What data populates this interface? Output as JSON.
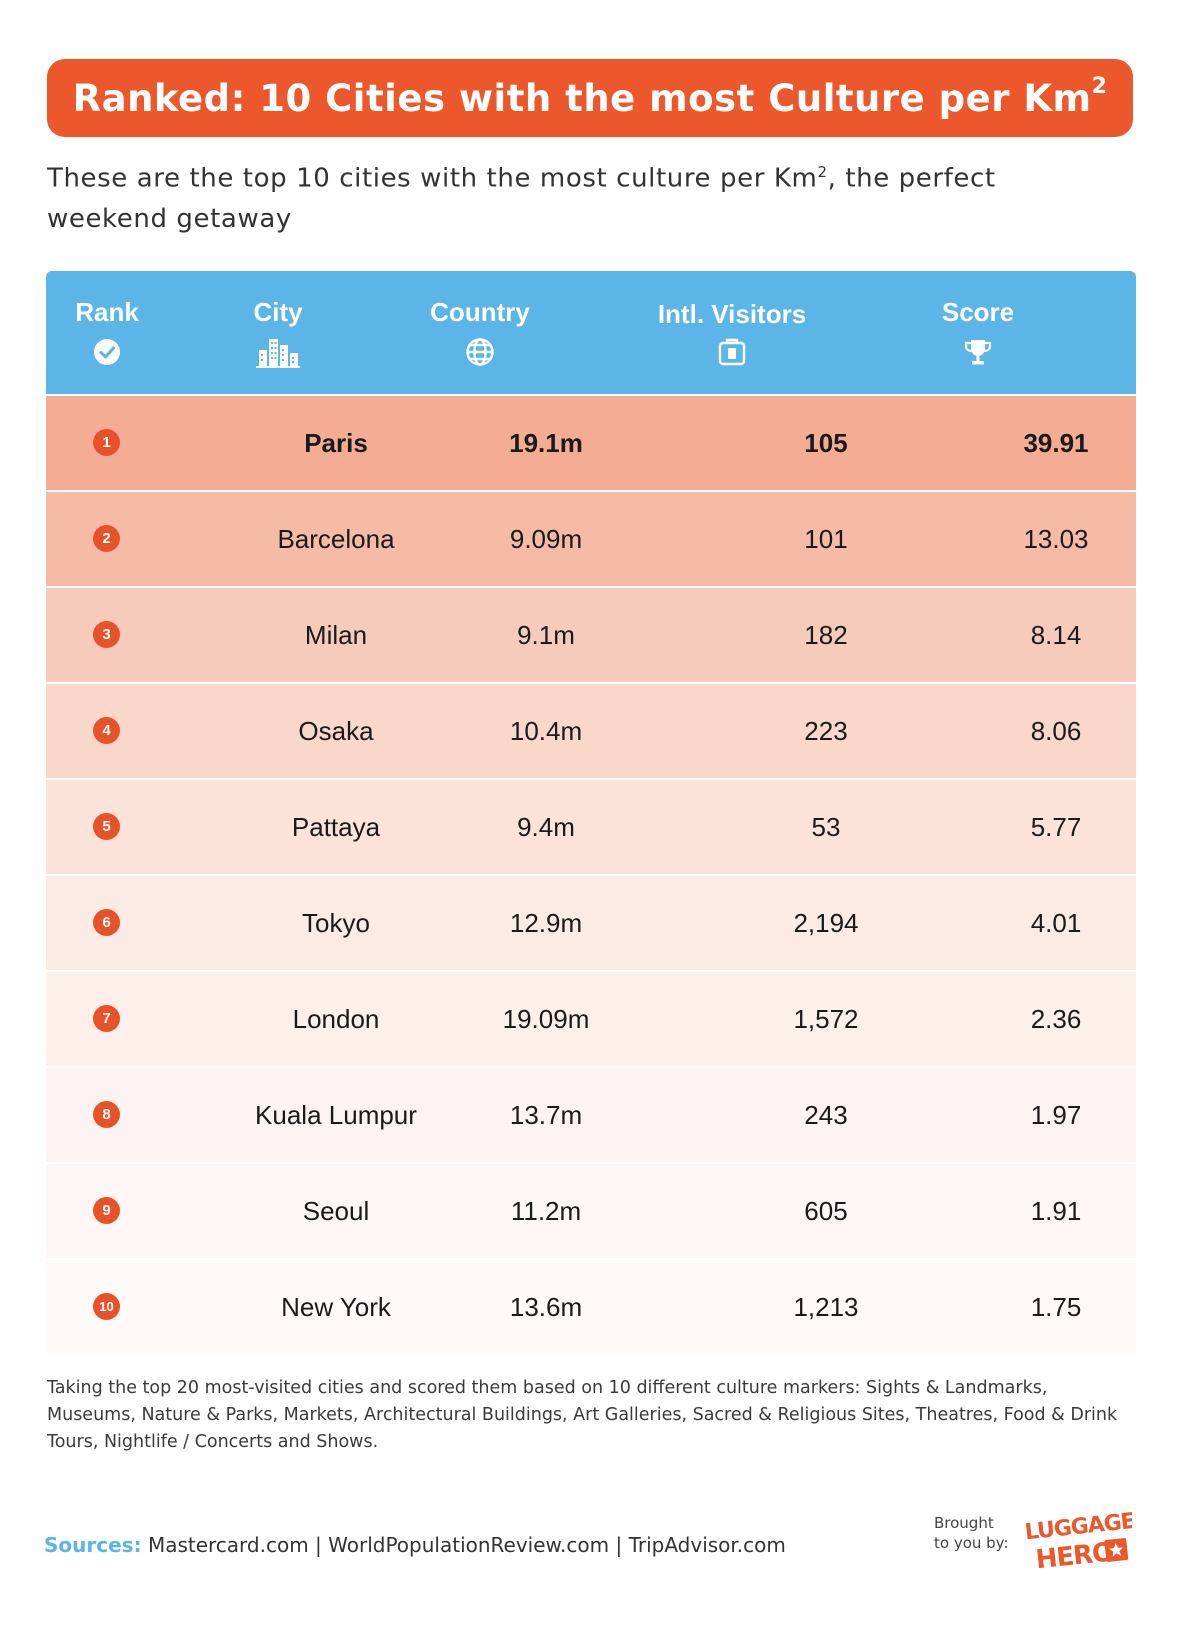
{
  "header": {
    "title": "Ranked: 10 Cities with the most Culture per Km",
    "title_sup": "2",
    "intro_before": "These are the top 10 cities with the most culture per Km",
    "intro_sup": "2",
    "intro_after": ", the perfect weekend getaway"
  },
  "table": {
    "header_color": "#5bb5e6",
    "columns": [
      {
        "label": "Rank",
        "icon": "check-circle-icon"
      },
      {
        "label": "City",
        "icon": "buildings-icon"
      },
      {
        "label": "Country",
        "icon": "globe-icon"
      },
      {
        "label": "Intl. Visitors",
        "icon": "luggage-icon"
      },
      {
        "label": "Score",
        "icon": "trophy-icon"
      }
    ],
    "rows": [
      {
        "rank": "1",
        "city": "Paris",
        "country": "19.1m",
        "visitors": "105",
        "score": "39.91",
        "bg": "#f4ac94"
      },
      {
        "rank": "2",
        "city": "Barcelona",
        "country": "9.09m",
        "visitors": "101",
        "score": "13.03",
        "bg": "#f5bba6"
      },
      {
        "rank": "3",
        "city": "Milan",
        "country": "9.1m",
        "visitors": "182",
        "score": "8.14",
        "bg": "#f7cbbb"
      },
      {
        "rank": "4",
        "city": "Osaka",
        "country": "10.4m",
        "visitors": "223",
        "score": "8.06",
        "bg": "#f9d7ca"
      },
      {
        "rank": "5",
        "city": "Pattaya",
        "country": "9.4m",
        "visitors": "53",
        "score": "5.77",
        "bg": "#fbe3da"
      },
      {
        "rank": "6",
        "city": "Tokyo",
        "country": "12.9m",
        "visitors": "2,194",
        "score": "4.01",
        "bg": "#fcebe5"
      },
      {
        "rank": "7",
        "city": "London",
        "country": "19.09m",
        "visitors": "1,572",
        "score": "2.36",
        "bg": "#fdf0eb"
      },
      {
        "rank": "8",
        "city": "Kuala Lumpur",
        "country": "13.7m",
        "visitors": "243",
        "score": "1.97",
        "bg": "#fdf4f1"
      },
      {
        "rank": "9",
        "city": "Seoul",
        "country": "11.2m",
        "visitors": "605",
        "score": "1.91",
        "bg": "#fef7f5"
      },
      {
        "rank": "10",
        "city": "New York",
        "country": "13.6m",
        "visitors": "1,213",
        "score": "1.75",
        "bg": "#fefaf8"
      }
    ]
  },
  "footer": {
    "note": "Taking the top 20 most-visited cities and scored them based on 10 different culture markers: Sights & Landmarks, Museums, Nature & Parks, Markets, Architectural Buildings, Art Galleries, Sacred & Religious Sites, Theatres, Food & Drink Tours, Nightlife / Concerts and Shows.",
    "sources_label": "Sources:",
    "sources_text": "Mastercard.com | WorldPopulationReview.com | TripAdvisor.com",
    "brought_line1": "Brought",
    "brought_line2": "to you by:",
    "logo_line1": "LUGGAGE",
    "logo_line2": "HERO"
  }
}
